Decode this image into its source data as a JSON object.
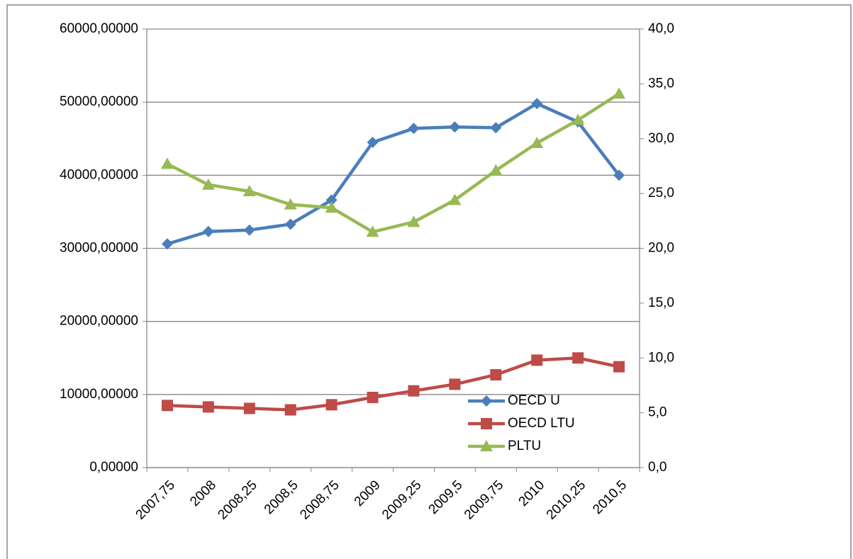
{
  "chart_data": {
    "type": "line",
    "categories": [
      "2007,75",
      "2008",
      "2008,25",
      "2008,5",
      "2008,75",
      "2009",
      "2009,25",
      "2009,5",
      "2009,75",
      "2010",
      "2010,25",
      "2010,5"
    ],
    "series": [
      {
        "name": "OECD U",
        "color": "#4a7ebb",
        "marker": "diamond",
        "values": [
          30600,
          32300,
          32500,
          33300,
          36600,
          44500,
          46400,
          46600,
          46500,
          49800,
          47300,
          40000
        ]
      },
      {
        "name": "OECD LTU",
        "color": "#be4b48",
        "marker": "square",
        "values": [
          8500,
          8300,
          8100,
          7900,
          8600,
          9600,
          10500,
          11400,
          12700,
          14700,
          15000,
          13800
        ]
      },
      {
        "name": "PLTU",
        "color": "#98b954",
        "marker": "triangle",
        "axis": "y2",
        "values": [
          27.7,
          25.8,
          25.2,
          24.0,
          23.7,
          21.5,
          22.4,
          24.4,
          27.1,
          29.6,
          31.7,
          34.1
        ]
      }
    ],
    "ylim": [
      0,
      60000
    ],
    "yticks": [
      {
        "value": 0,
        "label": "0,00000"
      },
      {
        "value": 10000,
        "label": "10000,00000"
      },
      {
        "value": 20000,
        "label": "20000,00000"
      },
      {
        "value": 30000,
        "label": "30000,00000"
      },
      {
        "value": 40000,
        "label": "40000,00000"
      },
      {
        "value": 50000,
        "label": "50000,00000"
      },
      {
        "value": 60000,
        "label": "60000,00000"
      }
    ],
    "y2lim": [
      0,
      40
    ],
    "y2ticks": [
      {
        "value": 0,
        "label": "0,0"
      },
      {
        "value": 5,
        "label": "5,0"
      },
      {
        "value": 10,
        "label": "10,0"
      },
      {
        "value": 15,
        "label": "15,0"
      },
      {
        "value": 20,
        "label": "20,0"
      },
      {
        "value": 25,
        "label": "25,0"
      },
      {
        "value": 30,
        "label": "30,0"
      },
      {
        "value": 35,
        "label": "35,0"
      },
      {
        "value": 40,
        "label": "40,0"
      }
    ],
    "grid": true
  }
}
